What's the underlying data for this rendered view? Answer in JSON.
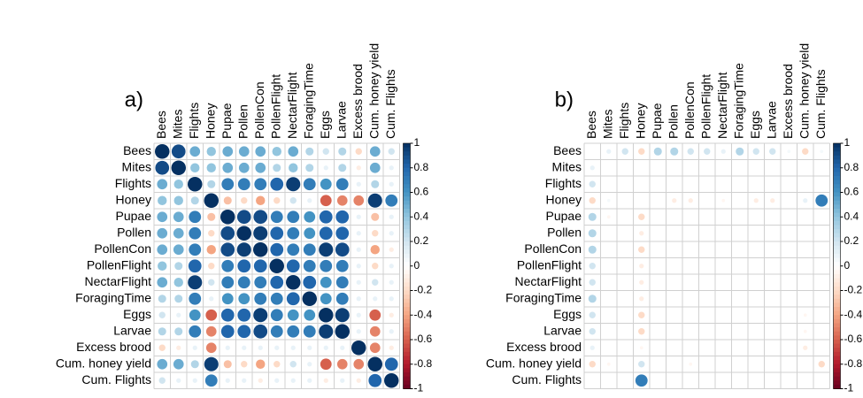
{
  "chart_data": [
    {
      "type": "corrplot",
      "title": "a)",
      "variables": [
        "Bees",
        "Mites",
        "Flights",
        "Honey",
        "Pupae",
        "Pollen",
        "PollenCon",
        "PollenFlight",
        "NectarFlight",
        "ForagingTime",
        "Eggs",
        "Larvae",
        "Excess brood",
        "Cum. honey yield",
        "Cum. Flights"
      ],
      "values": [
        [
          1,
          0.9,
          0.5,
          0.4,
          0.5,
          0.5,
          0.5,
          0.4,
          0.5,
          0.3,
          0.2,
          0.3,
          -0.2,
          0.5,
          0.2
        ],
        [
          0.9,
          1,
          0.4,
          0.4,
          0.5,
          0.5,
          0.5,
          0.3,
          0.4,
          0.3,
          0.1,
          0.3,
          -0.1,
          0.5,
          0.1
        ],
        [
          0.5,
          0.4,
          1,
          0.3,
          0.7,
          0.7,
          0.7,
          0.8,
          0.95,
          0.7,
          0.6,
          0.7,
          0.1,
          0.3,
          0.1
        ],
        [
          0.4,
          0.4,
          0.3,
          1,
          -0.3,
          -0.2,
          -0.4,
          -0.2,
          0.2,
          0.1,
          -0.6,
          -0.5,
          -0.5,
          0.95,
          0.7
        ],
        [
          0.5,
          0.5,
          0.7,
          -0.3,
          1,
          0.9,
          0.9,
          0.7,
          0.7,
          0.6,
          0.8,
          0.8,
          0.1,
          -0.3,
          0.1
        ],
        [
          0.5,
          0.5,
          0.7,
          -0.2,
          0.9,
          1,
          0.95,
          0.8,
          0.7,
          0.6,
          0.8,
          0.8,
          0.1,
          -0.2,
          0.1
        ],
        [
          0.5,
          0.5,
          0.7,
          -0.4,
          0.9,
          0.95,
          1,
          0.8,
          0.7,
          0.7,
          0.95,
          0.9,
          0.1,
          -0.4,
          -0.1
        ],
        [
          0.4,
          0.3,
          0.8,
          -0.2,
          0.7,
          0.8,
          0.8,
          1,
          0.8,
          0.7,
          0.7,
          0.7,
          0.1,
          -0.2,
          0.1
        ],
        [
          0.5,
          0.4,
          0.95,
          0.2,
          0.7,
          0.7,
          0.7,
          0.8,
          1,
          0.8,
          0.6,
          0.7,
          0.1,
          0.2,
          0.1
        ],
        [
          0.3,
          0.3,
          0.7,
          0.1,
          0.6,
          0.6,
          0.7,
          0.7,
          0.8,
          1,
          0.6,
          0.7,
          0.1,
          0.1,
          0.1
        ],
        [
          0.2,
          0.1,
          0.6,
          -0.6,
          0.8,
          0.8,
          0.95,
          0.7,
          0.6,
          0.6,
          1,
          0.95,
          0.1,
          -0.6,
          -0.1
        ],
        [
          0.3,
          0.3,
          0.7,
          -0.5,
          0.8,
          0.8,
          0.9,
          0.7,
          0.7,
          0.7,
          0.95,
          1,
          0.1,
          -0.5,
          0.1
        ],
        [
          -0.2,
          -0.1,
          0.1,
          -0.5,
          0.1,
          0.1,
          0.1,
          0.1,
          0.1,
          0.1,
          0.1,
          0.1,
          1,
          -0.5,
          -0.1
        ],
        [
          0.5,
          0.5,
          0.3,
          0.95,
          -0.3,
          -0.2,
          -0.4,
          -0.2,
          0.2,
          0.1,
          -0.6,
          -0.5,
          -0.5,
          1,
          0.8
        ],
        [
          0.2,
          0.1,
          0.1,
          0.7,
          0.1,
          0.1,
          -0.1,
          0.1,
          0.1,
          0.1,
          -0.1,
          0.1,
          -0.1,
          0.8,
          1
        ]
      ],
      "colorbar_lim": [
        -1,
        1
      ],
      "colorbar_ticks": [
        1,
        0.8,
        0.6,
        0.4,
        0.2,
        0,
        -0.2,
        -0.4,
        -0.6,
        -0.8,
        -1
      ],
      "colors": [
        "#67001F",
        "#B2182B",
        "#D6604D",
        "#F4A582",
        "#FDDBC7",
        "#FFFFFF",
        "#D1E5F0",
        "#92C5DE",
        "#4393C3",
        "#2166AC",
        "#053061"
      ]
    },
    {
      "type": "corrplot",
      "title": "b)",
      "variables": [
        "Bees",
        "Mites",
        "Flights",
        "Honey",
        "Pupae",
        "Pollen",
        "PollenCon",
        "PollenFlight",
        "NectarFlight",
        "ForagingTime",
        "Eggs",
        "Larvae",
        "Excess brood",
        "Cum. honey yield",
        "Cum. Flights"
      ],
      "values": [
        [
          null,
          0.1,
          0.2,
          -0.2,
          0.3,
          0.3,
          0.2,
          0.2,
          0.1,
          0.3,
          0.2,
          0.2,
          0.05,
          -0.2,
          0.05
        ],
        [
          0.1,
          null,
          null,
          null,
          null,
          null,
          null,
          null,
          null,
          null,
          null,
          null,
          null,
          null,
          null
        ],
        [
          0.2,
          null,
          null,
          null,
          null,
          null,
          null,
          null,
          null,
          null,
          null,
          null,
          null,
          null,
          null
        ],
        [
          -0.2,
          0.05,
          null,
          null,
          null,
          -0.1,
          -0.1,
          null,
          -0.05,
          null,
          -0.1,
          -0.1,
          null,
          0.1,
          0.7
        ],
        [
          0.3,
          -0.05,
          null,
          -0.2,
          null,
          null,
          null,
          null,
          null,
          null,
          null,
          null,
          null,
          null,
          null
        ],
        [
          0.3,
          null,
          null,
          -0.1,
          null,
          null,
          null,
          null,
          null,
          null,
          null,
          null,
          null,
          null,
          null
        ],
        [
          0.3,
          null,
          null,
          -0.2,
          null,
          null,
          null,
          null,
          null,
          null,
          null,
          null,
          null,
          null,
          null
        ],
        [
          0.2,
          null,
          null,
          -0.1,
          null,
          null,
          null,
          null,
          null,
          null,
          null,
          null,
          null,
          null,
          null
        ],
        [
          0.2,
          null,
          null,
          -0.1,
          null,
          null,
          null,
          null,
          null,
          null,
          null,
          null,
          null,
          null,
          null
        ],
        [
          0.3,
          null,
          null,
          -0.1,
          null,
          null,
          null,
          null,
          null,
          null,
          null,
          null,
          null,
          null,
          null
        ],
        [
          0.2,
          null,
          null,
          -0.2,
          null,
          null,
          null,
          null,
          null,
          null,
          null,
          null,
          null,
          -0.05,
          null
        ],
        [
          0.2,
          null,
          null,
          -0.2,
          null,
          null,
          null,
          null,
          null,
          null,
          null,
          null,
          null,
          -0.05,
          null
        ],
        [
          0.1,
          null,
          null,
          -0.05,
          null,
          null,
          null,
          null,
          null,
          null,
          null,
          null,
          null,
          -0.1,
          null
        ],
        [
          -0.2,
          -0.05,
          null,
          0.2,
          null,
          null,
          -0.05,
          null,
          null,
          null,
          null,
          null,
          null,
          null,
          -0.2
        ],
        [
          null,
          null,
          null,
          0.7,
          null,
          null,
          null,
          null,
          null,
          null,
          null,
          null,
          null,
          null,
          null
        ]
      ],
      "colorbar_lim": [
        -1,
        1
      ],
      "colorbar_ticks": [
        1,
        0.8,
        0.6,
        0.4,
        0.2,
        0,
        -0.2,
        -0.4,
        -0.6,
        -0.8,
        -1
      ],
      "colors": [
        "#67001F",
        "#B2182B",
        "#D6604D",
        "#F4A582",
        "#FDDBC7",
        "#FFFFFF",
        "#D1E5F0",
        "#92C5DE",
        "#4393C3",
        "#2166AC",
        "#053061"
      ]
    }
  ]
}
